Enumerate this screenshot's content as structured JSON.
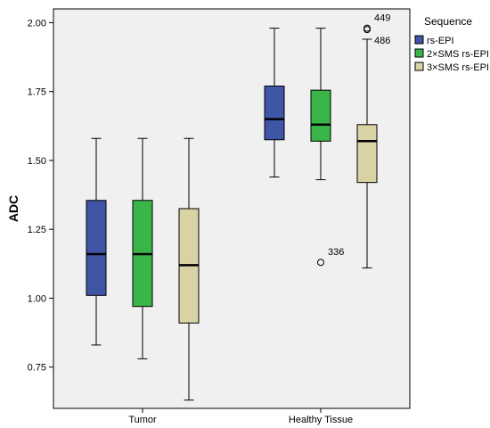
{
  "chart_data": {
    "type": "box",
    "ylabel": "ADC",
    "xlabel": "",
    "ylim": [
      0.6,
      2.05
    ],
    "yticks": [
      "0.75",
      "1.00",
      "1.25",
      "1.50",
      "1.75",
      "2.00"
    ],
    "categories": [
      "Tumor",
      "Healthy Tissue"
    ],
    "legend_title": "Sequence",
    "legend_position": "right",
    "series": [
      {
        "name": "rs-EPI",
        "color": "#3f55a6",
        "boxes": [
          {
            "min": 0.83,
            "q1": 1.01,
            "median": 1.16,
            "q3": 1.355,
            "max": 1.58,
            "outliers": []
          },
          {
            "min": 1.44,
            "q1": 1.575,
            "median": 1.65,
            "q3": 1.77,
            "max": 1.98,
            "outliers": []
          }
        ]
      },
      {
        "name": "2×SMS rs-EPI",
        "color": "#3ab54a",
        "boxes": [
          {
            "min": 0.78,
            "q1": 0.97,
            "median": 1.16,
            "q3": 1.355,
            "max": 1.58,
            "outliers": []
          },
          {
            "min": 1.43,
            "q1": 1.57,
            "median": 1.63,
            "q3": 1.755,
            "max": 1.98,
            "outliers": [
              {
                "value": 1.13,
                "label": "336"
              }
            ]
          }
        ]
      },
      {
        "name": "3×SMS rs-EPI",
        "color": "#d8d2a4",
        "boxes": [
          {
            "min": 0.63,
            "q1": 0.91,
            "median": 1.12,
            "q3": 1.325,
            "max": 1.58,
            "outliers": []
          },
          {
            "min": 1.11,
            "q1": 1.42,
            "median": 1.57,
            "q3": 1.63,
            "max": 1.94,
            "outliers": [
              {
                "value": 1.98,
                "label": "449"
              },
              {
                "value": 1.975,
                "label": "486"
              }
            ]
          }
        ]
      }
    ]
  }
}
